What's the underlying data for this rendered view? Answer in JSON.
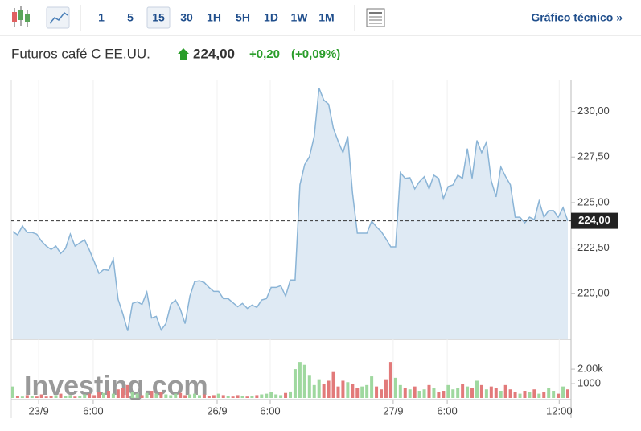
{
  "toolbar": {
    "intervals": [
      "1",
      "5",
      "15",
      "30",
      "1H",
      "5H",
      "1D",
      "1W",
      "1M"
    ],
    "active": "15",
    "link": "Gráfico técnico »"
  },
  "header": {
    "name": "Futuros café C EE.UU.",
    "change": "+0,20",
    "change_pct": "(+0,09%)"
  },
  "chart_data": {
    "type": "area",
    "xlim": [
      0,
      116
    ],
    "xticks": [
      {
        "value": 5.4,
        "label": "23/9"
      },
      {
        "value": 16.8,
        "label": "6:00"
      },
      {
        "value": 42.7,
        "label": "26/9"
      },
      {
        "value": 53.8,
        "label": "6:00"
      },
      {
        "value": 79.5,
        "label": "27/9"
      },
      {
        "value": 90.8,
        "label": "6:00"
      },
      {
        "value": 114.2,
        "label": "12:00"
      }
    ],
    "ylim": [
      217.5,
      231.7
    ],
    "yticks": [
      {
        "value": 220,
        "label": "220,00"
      },
      {
        "value": 222.5,
        "label": "222,50"
      },
      {
        "value": 225,
        "label": "225,00"
      },
      {
        "value": 227.5,
        "label": "227,50"
      },
      {
        "value": 230,
        "label": "230,00"
      }
    ],
    "grid": true,
    "last_price": {
      "value": 224.0,
      "label": "224,00"
    },
    "series": [
      {
        "color": "#8ab4d6",
        "fill": "#dfeaf4",
        "values": [
          223.41,
          223.23,
          223.72,
          223.36,
          223.36,
          223.27,
          222.88,
          222.61,
          222.43,
          222.61,
          222.21,
          222.48,
          223.27,
          222.61,
          222.79,
          222.96,
          222.39,
          221.77,
          221.11,
          221.33,
          221.28,
          221.9,
          219.69,
          218.89,
          217.96,
          219.47,
          219.56,
          219.42,
          220.09,
          218.67,
          218.76,
          218.01,
          218.36,
          219.42,
          219.65,
          219.16,
          218.36,
          219.87,
          220.66,
          220.71,
          220.62,
          220.35,
          220.13,
          220.13,
          219.73,
          219.73,
          219.51,
          219.29,
          219.47,
          219.2,
          219.38,
          219.25,
          219.65,
          219.73,
          220.35,
          220.35,
          220.44,
          219.87,
          220.75,
          220.75,
          225.97,
          227.08,
          227.52,
          228.63,
          231.28,
          230.62,
          230.4,
          229.07,
          228.36,
          227.74,
          228.63,
          225.53,
          223.32,
          223.32,
          223.32,
          223.98,
          223.67,
          223.41,
          223.01,
          222.57,
          222.57,
          226.64,
          226.33,
          226.37,
          225.75,
          226.15,
          226.42,
          225.75,
          226.5,
          226.33,
          225.22,
          225.88,
          225.97,
          226.5,
          226.33,
          227.96,
          226.33,
          228.41,
          227.74,
          228.32,
          226.19,
          225.31,
          226.95,
          226.42,
          225.97,
          224.2,
          224.2,
          223.89,
          224.2,
          224.07,
          225.09,
          224.2,
          224.56,
          224.56,
          224.2,
          224.73,
          224.0
        ]
      }
    ],
    "volume": {
      "up_color": "#9fd89f",
      "down_color": "#e27a7a",
      "ylim": [
        0,
        3900
      ],
      "yticks": [
        1000,
        {
          "value": 2000,
          "label": "2.00k"
        }
      ],
      "values": [
        800,
        150,
        100,
        200,
        150,
        100,
        250,
        100,
        150,
        200,
        300,
        150,
        200,
        100,
        150,
        250,
        300,
        200,
        400,
        350,
        500,
        300,
        600,
        700,
        900,
        400,
        300,
        200,
        350,
        500,
        300,
        400,
        250,
        200,
        300,
        350,
        200,
        250,
        300,
        200,
        250,
        150,
        200,
        300,
        200,
        150,
        100,
        200,
        150,
        100,
        150,
        200,
        250,
        300,
        400,
        250,
        200,
        350,
        450,
        2000,
        2500,
        2300,
        1600,
        900,
        1300,
        1000,
        1200,
        1800,
        800,
        1200,
        1100,
        1000,
        700,
        800,
        900,
        1500,
        800,
        600,
        1300,
        2500,
        1400,
        900,
        700,
        600,
        800,
        500,
        600,
        900,
        700,
        400,
        500,
        900,
        600,
        700,
        1000,
        800,
        700,
        1200,
        900,
        600,
        800,
        700,
        500,
        900,
        600,
        400,
        300,
        500,
        400,
        600,
        300,
        400,
        700,
        500,
        300,
        800,
        600
      ]
    },
    "watermark": "Investing.com"
  }
}
